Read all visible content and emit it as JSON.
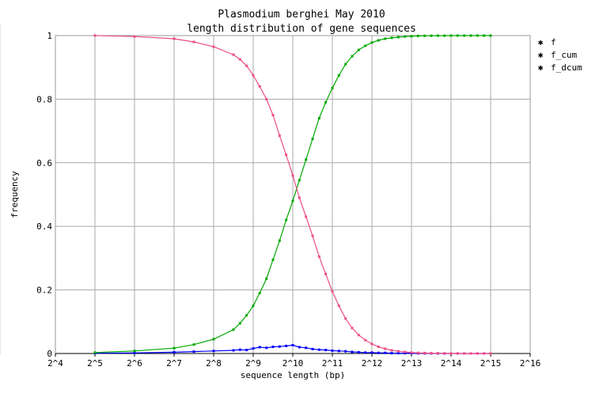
{
  "chart_data": {
    "type": "line",
    "title": "Plasmodium berghei May 2010",
    "subtitle": "length distribution of gene sequences",
    "xlabel": "sequence length (bp)",
    "ylabel": "frequency",
    "xscale": "log2",
    "xlim_exp": [
      4,
      16
    ],
    "xticks": [
      "2^4",
      "2^5",
      "2^6",
      "2^7",
      "2^8",
      "2^9",
      "2^10",
      "2^11",
      "2^12",
      "2^13",
      "2^14",
      "2^15",
      "2^16"
    ],
    "ylim": [
      0,
      1
    ],
    "yticks": [
      "0",
      "0.2",
      "0.4",
      "0.6",
      "0.8",
      "1"
    ],
    "grid": true,
    "legend_position": "right",
    "x": [
      32,
      64,
      128,
      181,
      256,
      362,
      406,
      456,
      512,
      574,
      645,
      724,
      812,
      912,
      1024,
      1149,
      1290,
      1448,
      1625,
      1824,
      2048,
      2299,
      2580,
      2896,
      3251,
      3649,
      4096,
      4598,
      5161,
      5793,
      6502,
      7298,
      8192,
      9195,
      10321,
      11585,
      13004,
      14596,
      16384,
      18390,
      20643,
      23170,
      26008,
      29193,
      32768
    ],
    "series": [
      {
        "name": "f",
        "color": "#0000ff",
        "values": [
          0.001,
          0.002,
          0.004,
          0.006,
          0.008,
          0.01,
          0.012,
          0.011,
          0.016,
          0.02,
          0.018,
          0.021,
          0.022,
          0.024,
          0.026,
          0.02,
          0.018,
          0.014,
          0.012,
          0.011,
          0.009,
          0.008,
          0.007,
          0.005,
          0.004,
          0.003,
          0.003,
          0.002,
          0.002,
          0.001,
          0.001,
          0.001,
          0.001,
          0.0005,
          0.0005,
          0.0003,
          0.0002,
          0.0001,
          0.0001,
          0.0001,
          0.0,
          0.0,
          0.0,
          0.0,
          0.0
        ]
      },
      {
        "name": "f_cum",
        "color": "#00aa00",
        "values": [
          0.003,
          0.008,
          0.017,
          0.028,
          0.045,
          0.075,
          0.095,
          0.12,
          0.15,
          0.19,
          0.235,
          0.295,
          0.355,
          0.42,
          0.48,
          0.545,
          0.61,
          0.675,
          0.74,
          0.79,
          0.835,
          0.875,
          0.91,
          0.935,
          0.955,
          0.968,
          0.978,
          0.985,
          0.99,
          0.993,
          0.995,
          0.997,
          0.998,
          0.999,
          0.9993,
          0.9995,
          0.9997,
          0.9998,
          0.9999,
          1.0,
          1.0,
          1.0,
          1.0,
          1.0,
          1.0
        ]
      },
      {
        "name": "f_dcum",
        "color": "#ee4d84",
        "values": [
          1.0,
          0.997,
          0.99,
          0.98,
          0.965,
          0.94,
          0.925,
          0.905,
          0.875,
          0.84,
          0.8,
          0.75,
          0.685,
          0.625,
          0.56,
          0.49,
          0.43,
          0.37,
          0.305,
          0.25,
          0.195,
          0.15,
          0.11,
          0.08,
          0.058,
          0.042,
          0.03,
          0.021,
          0.015,
          0.01,
          0.007,
          0.005,
          0.003,
          0.002,
          0.0015,
          0.001,
          0.0008,
          0.0005,
          0.0003,
          0.0002,
          0.0001,
          0.0001,
          0.0,
          0.0,
          0.0
        ]
      }
    ]
  }
}
